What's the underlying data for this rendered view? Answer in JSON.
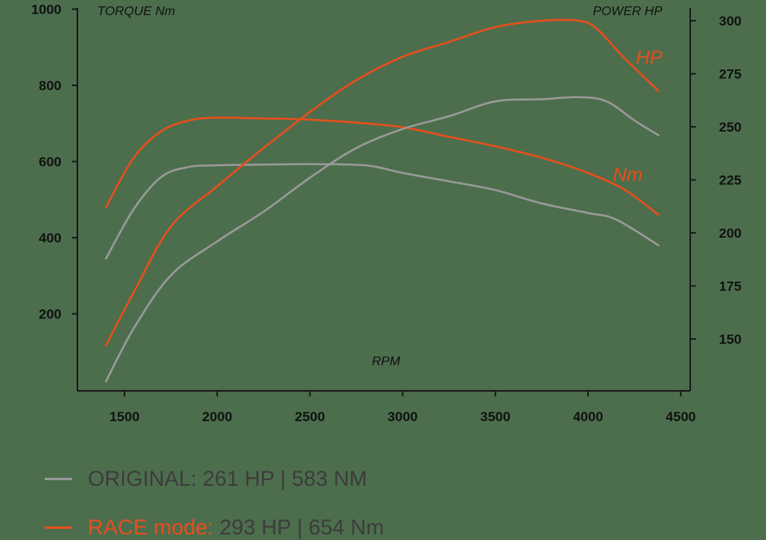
{
  "colors": {
    "background": "#4c6e4d",
    "race": "#e84e1c",
    "original": "#9a9a9a",
    "axis": "#1a1a1a",
    "legend_text": "#3c3c3c"
  },
  "chart_data": {
    "type": "line",
    "title": "",
    "xlabel": "RPM",
    "ylabel": "TORQUE Nm",
    "y2label": "POWER HP",
    "xlim": [
      1250,
      4550
    ],
    "ylim": [
      0,
      1000
    ],
    "y2lim": [
      125,
      305
    ],
    "x_ticks": [
      1500,
      2000,
      2500,
      3000,
      3500,
      4000,
      4500
    ],
    "y_ticks": [
      200,
      400,
      600,
      800,
      1000
    ],
    "y2_ticks": [
      150,
      175,
      200,
      225,
      250,
      275,
      300
    ],
    "grid": false,
    "annotations": [
      {
        "text": "HP",
        "series": "RACE power"
      },
      {
        "text": "Nm",
        "series": "RACE torque"
      }
    ],
    "series": [
      {
        "name": "RACE torque",
        "axis": "left",
        "color": "#e84e1c",
        "x": [
          1400,
          1550,
          1700,
          1850,
          2000,
          2250,
          2500,
          2750,
          3000,
          3250,
          3500,
          3750,
          4000,
          4200,
          4380
        ],
        "values": [
          480,
          610,
          680,
          708,
          715,
          713,
          710,
          702,
          690,
          665,
          640,
          610,
          570,
          525,
          460
        ]
      },
      {
        "name": "ORIGINAL torque",
        "axis": "left",
        "color": "#9a9a9a",
        "x": [
          1400,
          1550,
          1700,
          1850,
          2000,
          2250,
          2500,
          2800,
          3000,
          3250,
          3500,
          3750,
          4000,
          4150,
          4380
        ],
        "values": [
          345,
          475,
          560,
          586,
          590,
          592,
          593,
          590,
          570,
          548,
          525,
          490,
          465,
          448,
          380
        ]
      },
      {
        "name": "RACE power",
        "axis": "right",
        "color": "#e84e1c",
        "x": [
          1400,
          1550,
          1750,
          2000,
          2250,
          2500,
          2750,
          3000,
          3250,
          3500,
          3750,
          3950,
          4050,
          4200,
          4380
        ],
        "values": [
          147,
          172,
          203,
          222,
          240,
          257,
          272,
          283,
          290,
          297,
          300,
          300,
          296,
          282,
          267
        ]
      },
      {
        "name": "ORIGINAL power",
        "axis": "right",
        "color": "#9a9a9a",
        "x": [
          1400,
          1550,
          1750,
          2000,
          2250,
          2500,
          2750,
          3000,
          3250,
          3500,
          3750,
          3950,
          4100,
          4250,
          4380
        ],
        "values": [
          130,
          155,
          180,
          196,
          210,
          226,
          240,
          249,
          255,
          262,
          263,
          264,
          262,
          253,
          246
        ]
      }
    ],
    "legend": [
      {
        "label": "ORIGINAL:",
        "value": "261 HP | 583 NM",
        "color": "#9a9a9a"
      },
      {
        "label": "RACE mode:",
        "value": "293 HP | 654 Nm",
        "color": "#e84e1c"
      }
    ]
  },
  "labels": {
    "left_axis_title": "TORQUE Nm",
    "right_axis_title": "POWER HP",
    "x_axis_title": "RPM",
    "hp_annotation": "HP",
    "nm_annotation": "Nm"
  },
  "legend": {
    "original_label": "ORIGINAL: 261 HP | 583 NM",
    "race_label": "RACE mode:",
    "race_value": " 293 HP | 654 Nm"
  }
}
